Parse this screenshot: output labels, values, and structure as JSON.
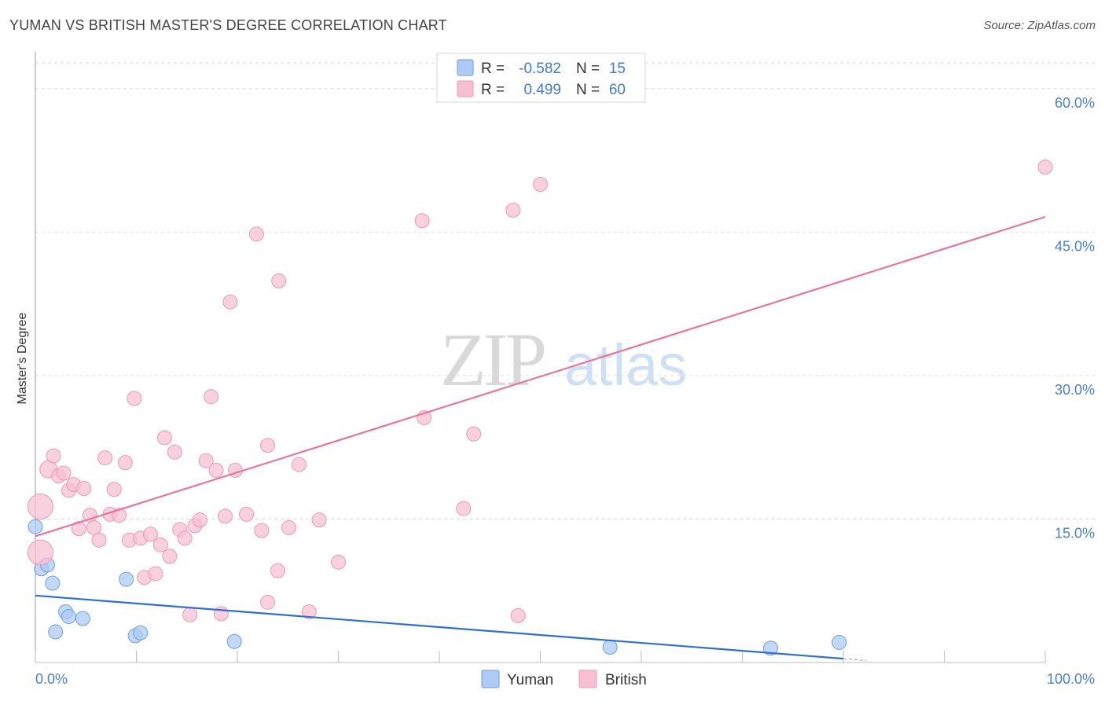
{
  "header": {
    "title": "YUMAN VS BRITISH MASTER'S DEGREE CORRELATION CHART",
    "source": "Source: ZipAtlas.com"
  },
  "watermark": {
    "zip": "ZIP",
    "atlas": "atlas"
  },
  "legend_box": {
    "rows": [
      {
        "r_label": "R =",
        "r_value": "-0.582",
        "n_label": "N =",
        "n_value": "15",
        "color": "#aecbf5"
      },
      {
        "r_label": "R =",
        "r_value": "0.499",
        "n_label": "N =",
        "n_value": "60",
        "color": "#f7b9cc"
      }
    ]
  },
  "colors": {
    "yuman_fill": "#aecbf5",
    "yuman_stroke": "#6f9fdd",
    "yuman_line": "#2f6fd0",
    "british_fill": "#f7c0d2",
    "british_stroke": "#ea9ab4",
    "british_line": "#e8769c",
    "tick_label": "#4a7fd0",
    "grid": "#dddddd"
  },
  "chart_data": {
    "type": "scatter",
    "xlabel": "",
    "ylabel": "Master's Degree",
    "xlim": [
      0,
      100
    ],
    "ylim": [
      0,
      60
    ],
    "x_tick_labels": {
      "min": "0.0%",
      "max": "100.0%"
    },
    "y_ticks": [
      {
        "value": 15,
        "label": "15.0%"
      },
      {
        "value": 30,
        "label": "30.0%"
      },
      {
        "value": 45,
        "label": "45.0%"
      },
      {
        "value": 60,
        "label": "60.0%"
      }
    ],
    "grid": true,
    "legend": {
      "position": "bottom-center"
    },
    "series": [
      {
        "name": "Yuman",
        "points": [
          {
            "x": 0,
            "y": 14.2
          },
          {
            "x": 0.6,
            "y": 9.8
          },
          {
            "x": 1.2,
            "y": 10.2
          },
          {
            "x": 1.7,
            "y": 8.3
          },
          {
            "x": 2.0,
            "y": 3.2
          },
          {
            "x": 3.0,
            "y": 5.3
          },
          {
            "x": 3.3,
            "y": 4.8
          },
          {
            "x": 4.7,
            "y": 4.6
          },
          {
            "x": 9.0,
            "y": 8.7
          },
          {
            "x": 9.9,
            "y": 2.8
          },
          {
            "x": 10.4,
            "y": 3.1
          },
          {
            "x": 19.7,
            "y": 2.2
          },
          {
            "x": 56.9,
            "y": 1.6
          },
          {
            "x": 72.8,
            "y": 1.5
          },
          {
            "x": 79.6,
            "y": 2.1
          }
        ],
        "trend": {
          "x": [
            0,
            80
          ],
          "y": [
            7.0,
            0.4
          ]
        }
      },
      {
        "name": "British",
        "points": [
          {
            "x": 0.5,
            "y": 16.3
          },
          {
            "x": 0.5,
            "y": 11.5
          },
          {
            "x": 1.3,
            "y": 20.2
          },
          {
            "x": 1.8,
            "y": 21.6
          },
          {
            "x": 2.3,
            "y": 19.5
          },
          {
            "x": 2.8,
            "y": 19.8
          },
          {
            "x": 3.3,
            "y": 18.0
          },
          {
            "x": 3.8,
            "y": 18.6
          },
          {
            "x": 4.3,
            "y": 14.0
          },
          {
            "x": 4.8,
            "y": 18.2
          },
          {
            "x": 5.4,
            "y": 15.4
          },
          {
            "x": 5.8,
            "y": 14.1
          },
          {
            "x": 6.3,
            "y": 12.8
          },
          {
            "x": 6.9,
            "y": 21.4
          },
          {
            "x": 7.4,
            "y": 15.5
          },
          {
            "x": 7.8,
            "y": 18.1
          },
          {
            "x": 8.3,
            "y": 15.4
          },
          {
            "x": 8.9,
            "y": 20.9
          },
          {
            "x": 9.3,
            "y": 12.8
          },
          {
            "x": 9.8,
            "y": 27.6
          },
          {
            "x": 10.4,
            "y": 13.0
          },
          {
            "x": 10.8,
            "y": 8.9
          },
          {
            "x": 11.4,
            "y": 13.4
          },
          {
            "x": 11.9,
            "y": 9.3
          },
          {
            "x": 12.4,
            "y": 12.3
          },
          {
            "x": 12.8,
            "y": 23.5
          },
          {
            "x": 13.3,
            "y": 11.1
          },
          {
            "x": 13.8,
            "y": 22.0
          },
          {
            "x": 14.3,
            "y": 13.9
          },
          {
            "x": 14.8,
            "y": 13.0
          },
          {
            "x": 15.3,
            "y": 5.0
          },
          {
            "x": 15.8,
            "y": 14.3
          },
          {
            "x": 16.3,
            "y": 14.9
          },
          {
            "x": 16.9,
            "y": 21.1
          },
          {
            "x": 17.4,
            "y": 27.8
          },
          {
            "x": 17.9,
            "y": 20.1
          },
          {
            "x": 18.4,
            "y": 5.1
          },
          {
            "x": 18.8,
            "y": 15.3
          },
          {
            "x": 19.3,
            "y": 37.7
          },
          {
            "x": 19.8,
            "y": 20.1
          },
          {
            "x": 20.9,
            "y": 15.5
          },
          {
            "x": 21.9,
            "y": 44.8
          },
          {
            "x": 22.4,
            "y": 13.8
          },
          {
            "x": 23.0,
            "y": 6.3
          },
          {
            "x": 23.0,
            "y": 22.7
          },
          {
            "x": 24.0,
            "y": 9.6
          },
          {
            "x": 24.1,
            "y": 39.9
          },
          {
            "x": 25.1,
            "y": 14.1
          },
          {
            "x": 26.1,
            "y": 20.7
          },
          {
            "x": 27.1,
            "y": 5.3
          },
          {
            "x": 28.1,
            "y": 14.9
          },
          {
            "x": 30.0,
            "y": 10.5
          },
          {
            "x": 38.3,
            "y": 46.2
          },
          {
            "x": 38.5,
            "y": 25.6
          },
          {
            "x": 42.4,
            "y": 16.1
          },
          {
            "x": 43.4,
            "y": 23.9
          },
          {
            "x": 47.3,
            "y": 47.3
          },
          {
            "x": 47.8,
            "y": 4.9
          },
          {
            "x": 50.0,
            "y": 50.0
          },
          {
            "x": 100.0,
            "y": 51.8
          }
        ],
        "trend": {
          "x": [
            0,
            100
          ],
          "y": [
            13.2,
            46.6
          ]
        }
      }
    ]
  }
}
